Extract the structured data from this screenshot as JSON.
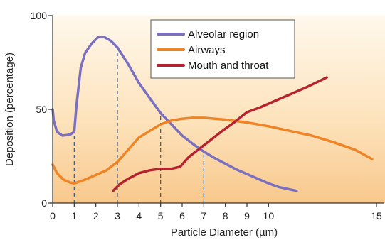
{
  "chart_data": {
    "type": "line",
    "title": "",
    "xlabel": "Particle Diameter (µm)",
    "ylabel": "Deposition (percentage)",
    "xlim": [
      0,
      15
    ],
    "ylim": [
      0,
      100
    ],
    "x_ticks": [
      0,
      1,
      2,
      3,
      4,
      5,
      6,
      7,
      8,
      9,
      10,
      15
    ],
    "y_ticks": [
      0,
      50,
      100
    ],
    "grid": false,
    "legend_position": "top-center",
    "reference_lines_x": [
      1,
      3,
      5,
      7
    ],
    "series": [
      {
        "name": "Alveolar region",
        "color": "#7b70c0",
        "points": [
          [
            0,
            50
          ],
          [
            0.05,
            44
          ],
          [
            0.2,
            38
          ],
          [
            0.45,
            36
          ],
          [
            0.8,
            36.5
          ],
          [
            1,
            38
          ],
          [
            1.1,
            52
          ],
          [
            1.3,
            72
          ],
          [
            1.5,
            80
          ],
          [
            1.8,
            85
          ],
          [
            2.1,
            88.5
          ],
          [
            2.4,
            88.5
          ],
          [
            2.7,
            86.5
          ],
          [
            3,
            83
          ],
          [
            3.5,
            74
          ],
          [
            4,
            64
          ],
          [
            4.5,
            56
          ],
          [
            5,
            48
          ],
          [
            5.5,
            42
          ],
          [
            6,
            36
          ],
          [
            6.5,
            31.5
          ],
          [
            7,
            27.5
          ],
          [
            7.5,
            24
          ],
          [
            8,
            21
          ],
          [
            8.5,
            18
          ],
          [
            9,
            15.5
          ],
          [
            9.5,
            13
          ],
          [
            10,
            10.5
          ],
          [
            10.5,
            8.5
          ],
          [
            11.3,
            6.5
          ]
        ]
      },
      {
        "name": "Airways",
        "color": "#ef8427",
        "points": [
          [
            0,
            20.5
          ],
          [
            0.2,
            16
          ],
          [
            0.5,
            12.5
          ],
          [
            0.8,
            11
          ],
          [
            1,
            10.5
          ],
          [
            1.5,
            12.5
          ],
          [
            2,
            15
          ],
          [
            2.5,
            17.5
          ],
          [
            3,
            22
          ],
          [
            3.5,
            28.5
          ],
          [
            4,
            35
          ],
          [
            4.5,
            38.5
          ],
          [
            5,
            42
          ],
          [
            5.5,
            44
          ],
          [
            6,
            45
          ],
          [
            6.5,
            45.5
          ],
          [
            7,
            45.5
          ],
          [
            8,
            44.5
          ],
          [
            9,
            43
          ],
          [
            10,
            41
          ],
          [
            11,
            38.5
          ],
          [
            12,
            36
          ],
          [
            13,
            32.5
          ],
          [
            14,
            28.5
          ],
          [
            14.8,
            23.5
          ]
        ]
      },
      {
        "name": "Mouth and throat",
        "color": "#b5232e",
        "points": [
          [
            2.8,
            6.5
          ],
          [
            3.1,
            10
          ],
          [
            3.5,
            13
          ],
          [
            4,
            16
          ],
          [
            4.5,
            17.5
          ],
          [
            5,
            18.3
          ],
          [
            5.5,
            18.3
          ],
          [
            5.9,
            19.3
          ],
          [
            6.3,
            24.5
          ],
          [
            6.8,
            29
          ],
          [
            7.3,
            33.5
          ],
          [
            7.8,
            38
          ],
          [
            8.4,
            43
          ],
          [
            9,
            48.5
          ],
          [
            9.6,
            51
          ],
          [
            10.2,
            54
          ],
          [
            11,
            58
          ],
          [
            11.8,
            62
          ],
          [
            12.7,
            67
          ]
        ]
      }
    ]
  }
}
